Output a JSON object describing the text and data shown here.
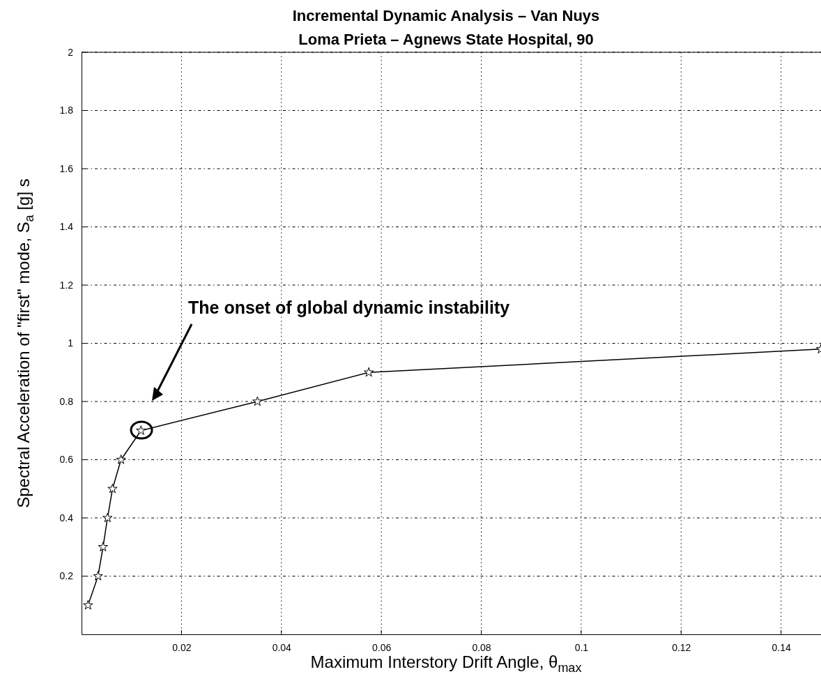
{
  "chart_data": {
    "type": "line",
    "title": "Incremental Dynamic Analysis – Van Nuys",
    "subtitle": "Loma Prieta – Agnews State Hospital, 90",
    "xlabel": "Maximum Interstory Drift Angle, θ$_{max}$",
    "ylabel": "Spectral Acceleration of \"first\" mode, S$_{a}$ [g] s",
    "x": [
      0.0013,
      0.0033,
      0.0043,
      0.0052,
      0.0062,
      0.0079,
      0.0119,
      0.0352,
      0.0575,
      0.148
    ],
    "series": [
      {
        "color": "#000000",
        "values": [
          0.1,
          0.2,
          0.3,
          0.4,
          0.5,
          0.6,
          0.7,
          0.8,
          0.9,
          0.98
        ]
      }
    ],
    "marker": "star",
    "line_style": "solid",
    "grid": true,
    "xlim": [
      0,
      0.148
    ],
    "xticks": [
      0.02,
      0.04,
      0.06,
      0.08,
      0.1,
      0.12,
      0.14
    ],
    "ylim": [
      0,
      2
    ],
    "yticks": [
      0.2,
      0.4,
      0.6,
      0.8,
      1,
      1.2,
      1.4,
      1.6,
      1.8,
      2
    ],
    "annotations": [
      "The onset of global dynamic instability"
    ]
  }
}
